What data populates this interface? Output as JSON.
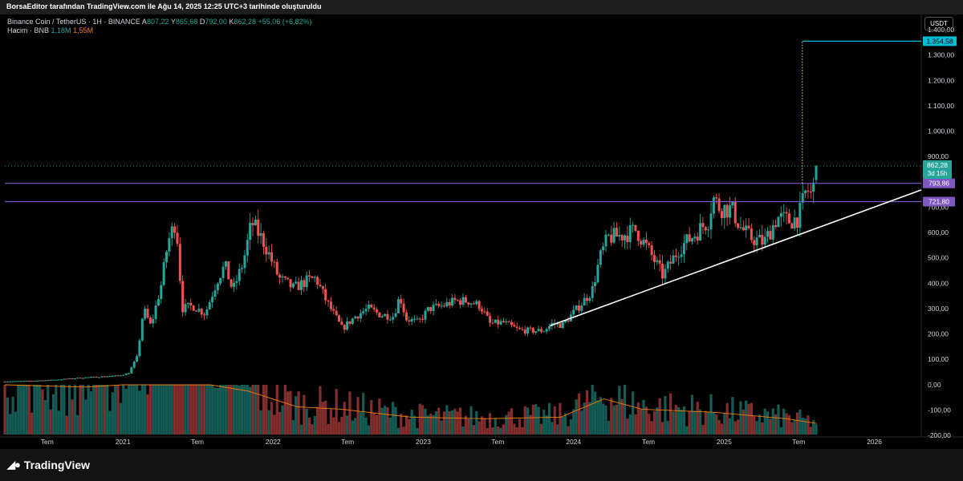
{
  "header": {
    "credit": "BorsaEditor tarafından TradingView.com ile Ağu 14, 2025 12:25 UTC+3 tarihinde oluşturuldu"
  },
  "legend": {
    "symbol": "Binance Coin / TetherUS · 1H · BINANCE",
    "o_label": "A",
    "o": "807,22",
    "h_label": "Y",
    "h": "865,68",
    "l_label": "D",
    "l": "792,00",
    "c_label": "K",
    "c": "862,28",
    "change": "+55,06 (+6,82%)",
    "volume_label": "Hacim · BNB",
    "volume_1": "1,18M",
    "volume_2": "1,55M"
  },
  "currency_button": "USDT",
  "brand": {
    "logo_icon": "tradingview-logo-icon",
    "name": "TradingView"
  },
  "colors": {
    "up": "#26a69a",
    "down": "#ef5350",
    "level_line": "#7e57c2",
    "target_line": "#00bcd4",
    "trendline": "#ffffff",
    "volume_ma": "#f57c00",
    "vertical_marker": "#f9e07a"
  },
  "chart_data": {
    "type": "candlestick",
    "title": "",
    "xlabel": "",
    "ylabel": "",
    "ylim": [
      -200,
      1400
    ],
    "y_ticks": [
      "1.400,00",
      "1.300,00",
      "1.200,00",
      "1.100,00",
      "1.000,00",
      "900,00",
      "800,00",
      "700,00",
      "600,00",
      "500,00",
      "400,00",
      "300,00",
      "200,00",
      "100,00",
      "0,00",
      "-100,00",
      "-200,00"
    ],
    "y_tick_values": [
      1400,
      1300,
      1200,
      1100,
      1000,
      900,
      800,
      700,
      600,
      500,
      400,
      300,
      200,
      100,
      0,
      -100,
      -200
    ],
    "x_ticks": [
      {
        "label": "Tem",
        "date": "2020-07-01"
      },
      {
        "label": "2021",
        "date": "2021-01-01"
      },
      {
        "label": "Tem",
        "date": "2021-07-01"
      },
      {
        "label": "2022",
        "date": "2022-01-01"
      },
      {
        "label": "Tem",
        "date": "2022-07-01"
      },
      {
        "label": "2023",
        "date": "2023-01-01"
      },
      {
        "label": "Tem",
        "date": "2023-07-01"
      },
      {
        "label": "2024",
        "date": "2024-01-01"
      },
      {
        "label": "Tem",
        "date": "2024-07-01"
      },
      {
        "label": "2025",
        "date": "2025-01-01"
      },
      {
        "label": "Tem",
        "date": "2025-07-01"
      },
      {
        "label": "2026",
        "date": "2026-01-01"
      }
    ],
    "xlim": [
      "2020-03-20",
      "2026-04-25"
    ],
    "price_path": [
      [
        "2020-03-20",
        12
      ],
      [
        "2020-07-01",
        17
      ],
      [
        "2020-10-01",
        28
      ],
      [
        "2020-12-20",
        35
      ],
      [
        "2021-01-15",
        45
      ],
      [
        "2021-02-05",
        110
      ],
      [
        "2021-02-20",
        300
      ],
      [
        "2021-03-10",
        230
      ],
      [
        "2021-04-05",
        400
      ],
      [
        "2021-04-20",
        560
      ],
      [
        "2021-05-10",
        650
      ],
      [
        "2021-05-25",
        300
      ],
      [
        "2021-06-20",
        310
      ],
      [
        "2021-07-20",
        280
      ],
      [
        "2021-08-20",
        420
      ],
      [
        "2021-09-06",
        470
      ],
      [
        "2021-09-25",
        370
      ],
      [
        "2021-10-20",
        480
      ],
      [
        "2021-11-10",
        640
      ],
      [
        "2021-12-10",
        560
      ],
      [
        "2022-01-15",
        420
      ],
      [
        "2022-02-20",
        380
      ],
      [
        "2022-03-25",
        410
      ],
      [
        "2022-04-15",
        420
      ],
      [
        "2022-05-10",
        330
      ],
      [
        "2022-06-18",
        220
      ],
      [
        "2022-07-20",
        270
      ],
      [
        "2022-08-20",
        300
      ],
      [
        "2022-09-20",
        275
      ],
      [
        "2022-10-20",
        270
      ],
      [
        "2022-11-05",
        350
      ],
      [
        "2022-11-20",
        260
      ],
      [
        "2022-12-20",
        245
      ],
      [
        "2023-01-15",
        300
      ],
      [
        "2023-02-15",
        310
      ],
      [
        "2023-03-20",
        330
      ],
      [
        "2023-04-20",
        330
      ],
      [
        "2023-05-20",
        310
      ],
      [
        "2023-06-12",
        240
      ],
      [
        "2023-07-15",
        245
      ],
      [
        "2023-08-20",
        215
      ],
      [
        "2023-09-20",
        212
      ],
      [
        "2023-10-20",
        213
      ],
      [
        "2023-11-10",
        240
      ],
      [
        "2023-12-05",
        235
      ],
      [
        "2024-01-10",
        300
      ],
      [
        "2024-02-15",
        370
      ],
      [
        "2024-03-05",
        500
      ],
      [
        "2024-03-25",
        580
      ],
      [
        "2024-05-01",
        590
      ],
      [
        "2024-06-01",
        610
      ],
      [
        "2024-07-05",
        520
      ],
      [
        "2024-08-05",
        430
      ],
      [
        "2024-09-15",
        540
      ],
      [
        "2024-10-20",
        590
      ],
      [
        "2024-11-25",
        650
      ],
      [
        "2024-12-04",
        740
      ],
      [
        "2024-12-20",
        700
      ],
      [
        "2025-01-20",
        690
      ],
      [
        "2025-02-10",
        620
      ],
      [
        "2025-03-05",
        580
      ],
      [
        "2025-04-08",
        560
      ],
      [
        "2025-05-10",
        660
      ],
      [
        "2025-06-10",
        645
      ],
      [
        "2025-07-01",
        660
      ],
      [
        "2025-07-20",
        770
      ],
      [
        "2025-08-01",
        750
      ],
      [
        "2025-08-12",
        807
      ],
      [
        "2025-08-14",
        862
      ]
    ],
    "volume_ma_path": [
      [
        "2020-03-20",
        72
      ],
      [
        "2020-10-01",
        60
      ],
      [
        "2021-01-01",
        75
      ],
      [
        "2021-02-15",
        110
      ],
      [
        "2021-05-01",
        160
      ],
      [
        "2021-06-15",
        175
      ],
      [
        "2021-08-01",
        135
      ],
      [
        "2021-11-01",
        55
      ],
      [
        "2022-03-01",
        35
      ],
      [
        "2022-06-15",
        32
      ],
      [
        "2022-12-01",
        22
      ],
      [
        "2023-06-01",
        20
      ],
      [
        "2023-12-01",
        22
      ],
      [
        "2024-03-15",
        45
      ],
      [
        "2024-06-15",
        32
      ],
      [
        "2024-12-10",
        28
      ],
      [
        "2025-06-01",
        20
      ],
      [
        "2025-08-14",
        14
      ]
    ],
    "volume_ylim": [
      0,
      220
    ],
    "horizontal_levels": [
      {
        "value": 793.86,
        "label": "793,86"
      },
      {
        "value": 721.8,
        "label": "721,80"
      }
    ],
    "last_price": {
      "value": 862.28,
      "label": "862,28",
      "countdown": "3d 15h"
    },
    "target": {
      "value": 1354.58,
      "label": "1.354,58",
      "from_date": "2025-07-10",
      "to_date": "2026-04-25",
      "marker_from_value": 793.86
    },
    "trendline": {
      "from": [
        "2023-11-05",
        232
      ],
      "to": [
        "2026-04-25",
        768
      ]
    }
  }
}
